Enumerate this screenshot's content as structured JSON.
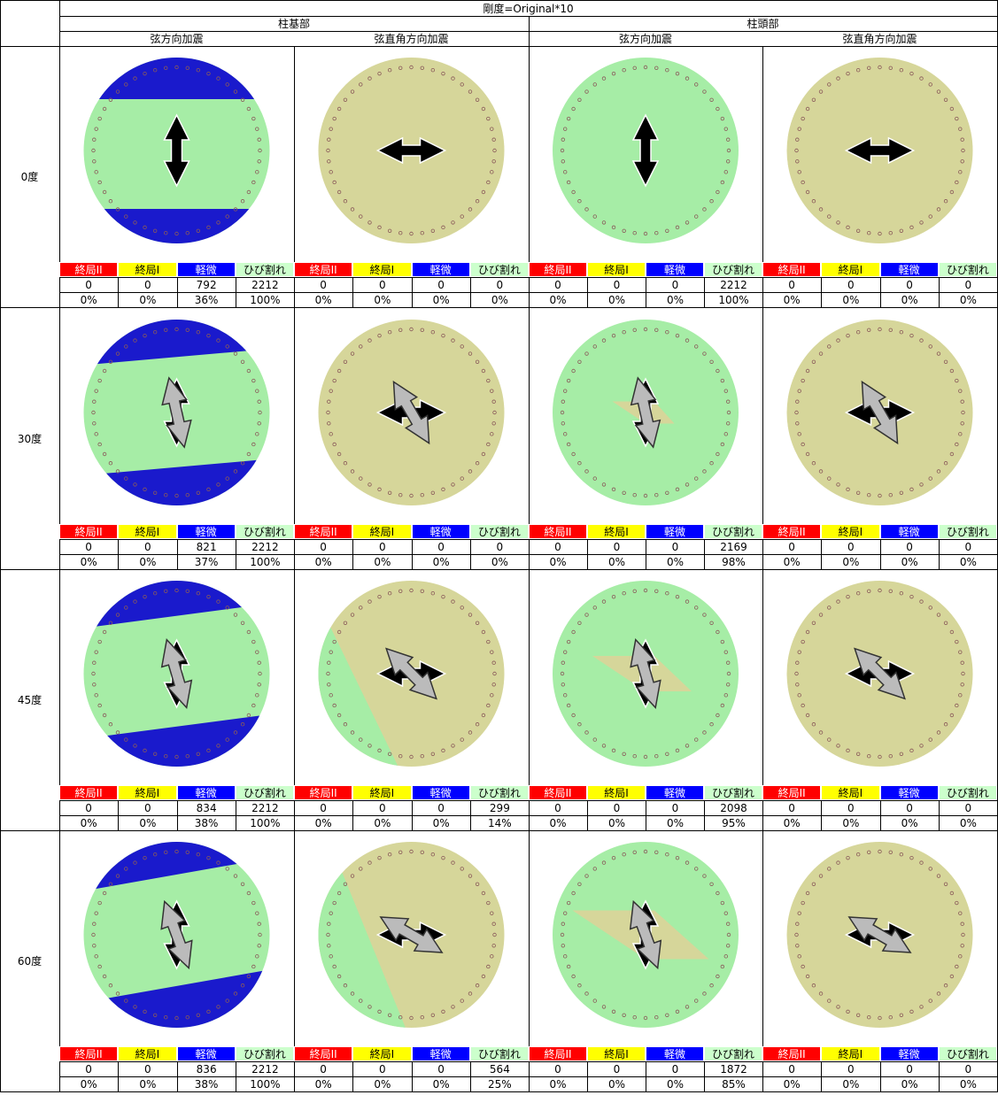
{
  "header": {
    "title": "剛度=Original*10",
    "groups": [
      "柱基部",
      "柱頭部"
    ],
    "directions": [
      "弦方向加震",
      "弦直角方向加震",
      "弦方向加震",
      "弦直角方向加震"
    ]
  },
  "legend": [
    "終局II",
    "終局I",
    "軽微",
    "ひび割れ"
  ],
  "rows": [
    {
      "angle": "0度",
      "panels": [
        {
          "counts": [
            0,
            0,
            792,
            2212
          ],
          "percents": [
            "0%",
            "0%",
            "36%",
            "100%"
          ]
        },
        {
          "counts": [
            0,
            0,
            0,
            0
          ],
          "percents": [
            "0%",
            "0%",
            "0%",
            "0%"
          ]
        },
        {
          "counts": [
            0,
            0,
            0,
            2212
          ],
          "percents": [
            "0%",
            "0%",
            "0%",
            "100%"
          ]
        },
        {
          "counts": [
            0,
            0,
            0,
            0
          ],
          "percents": [
            "0%",
            "0%",
            "0%",
            "0%"
          ]
        }
      ]
    },
    {
      "angle": "30度",
      "panels": [
        {
          "counts": [
            0,
            0,
            821,
            2212
          ],
          "percents": [
            "0%",
            "0%",
            "37%",
            "100%"
          ]
        },
        {
          "counts": [
            0,
            0,
            0,
            0
          ],
          "percents": [
            "0%",
            "0%",
            "0%",
            "0%"
          ]
        },
        {
          "counts": [
            0,
            0,
            0,
            2169
          ],
          "percents": [
            "0%",
            "0%",
            "0%",
            "98%"
          ]
        },
        {
          "counts": [
            0,
            0,
            0,
            0
          ],
          "percents": [
            "0%",
            "0%",
            "0%",
            "0%"
          ]
        }
      ]
    },
    {
      "angle": "45度",
      "panels": [
        {
          "counts": [
            0,
            0,
            834,
            2212
          ],
          "percents": [
            "0%",
            "0%",
            "38%",
            "100%"
          ]
        },
        {
          "counts": [
            0,
            0,
            0,
            299
          ],
          "percents": [
            "0%",
            "0%",
            "0%",
            "14%"
          ]
        },
        {
          "counts": [
            0,
            0,
            0,
            2098
          ],
          "percents": [
            "0%",
            "0%",
            "0%",
            "95%"
          ]
        },
        {
          "counts": [
            0,
            0,
            0,
            0
          ],
          "percents": [
            "0%",
            "0%",
            "0%",
            "0%"
          ]
        }
      ]
    },
    {
      "angle": "60度",
      "panels": [
        {
          "counts": [
            0,
            0,
            836,
            2212
          ],
          "percents": [
            "0%",
            "0%",
            "38%",
            "100%"
          ]
        },
        {
          "counts": [
            0,
            0,
            0,
            564
          ],
          "percents": [
            "0%",
            "0%",
            "0%",
            "25%"
          ]
        },
        {
          "counts": [
            0,
            0,
            0,
            1872
          ],
          "percents": [
            "0%",
            "0%",
            "0%",
            "85%"
          ]
        },
        {
          "counts": [
            0,
            0,
            0,
            0
          ],
          "percents": [
            "0%",
            "0%",
            "0%",
            "0%"
          ]
        }
      ]
    }
  ]
}
